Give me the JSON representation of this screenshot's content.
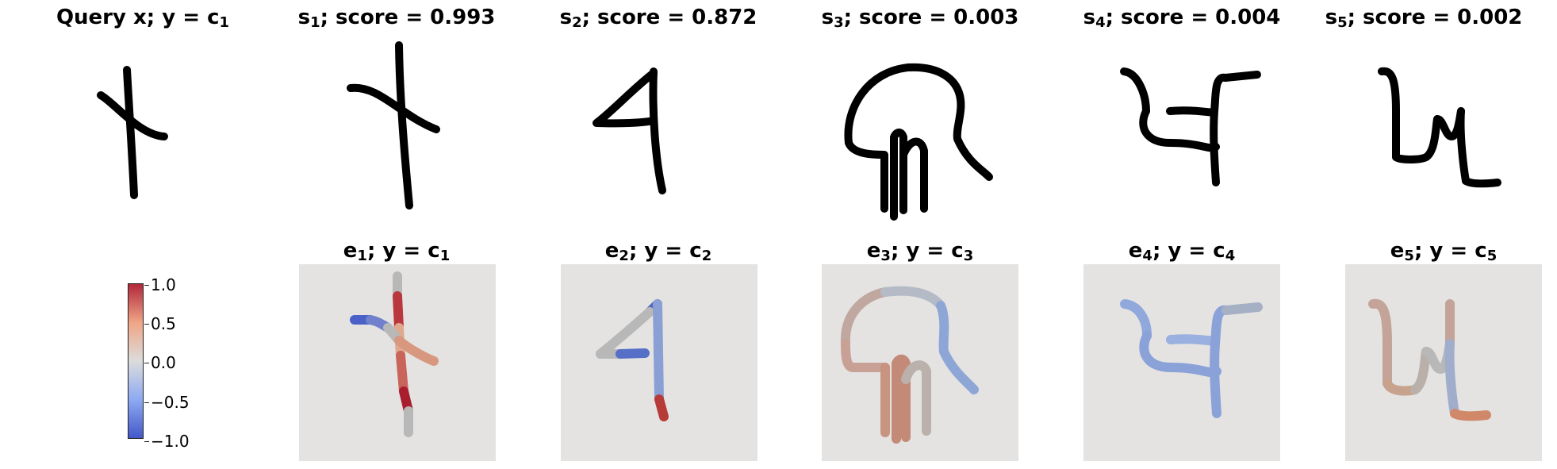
{
  "query": {
    "title": "Query x; y",
    "title_rhs": "c",
    "title_sub": "1"
  },
  "support": [
    {
      "s_label": "s",
      "s_sub": "1",
      "score_text": "; score = 0.993"
    },
    {
      "s_label": "s",
      "s_sub": "2",
      "score_text": "; score = 0.872"
    },
    {
      "s_label": "s",
      "s_sub": "3",
      "score_text": "; score = 0.003"
    },
    {
      "s_label": "s",
      "s_sub": "4",
      "score_text": "; score = 0.004"
    },
    {
      "s_label": "s",
      "s_sub": "5",
      "score_text": "; score = 0.002"
    }
  ],
  "explanations": [
    {
      "e_label": "e",
      "e_sub": "1",
      "mid": "; y",
      "c_label": "c",
      "c_sub": "1"
    },
    {
      "e_label": "e",
      "e_sub": "2",
      "mid": "; y",
      "c_label": "c",
      "c_sub": "2"
    },
    {
      "e_label": "e",
      "e_sub": "3",
      "mid": "; y",
      "c_label": "c",
      "c_sub": "3"
    },
    {
      "e_label": "e",
      "e_sub": "4",
      "mid": "; y",
      "c_label": "c",
      "c_sub": "4"
    },
    {
      "e_label": "e",
      "e_sub": "5",
      "mid": "; y",
      "c_label": "c",
      "c_sub": "5"
    }
  ],
  "eq_sign": "=",
  "colorbar": {
    "ticks": [
      "1.0",
      "0.5",
      "0.0",
      "−0.5",
      "−1.0"
    ],
    "range": [
      -1.0,
      1.0
    ],
    "colors": {
      "min": "#3b4cc0",
      "mid": "#dddddd",
      "max": "#b40426"
    }
  }
}
